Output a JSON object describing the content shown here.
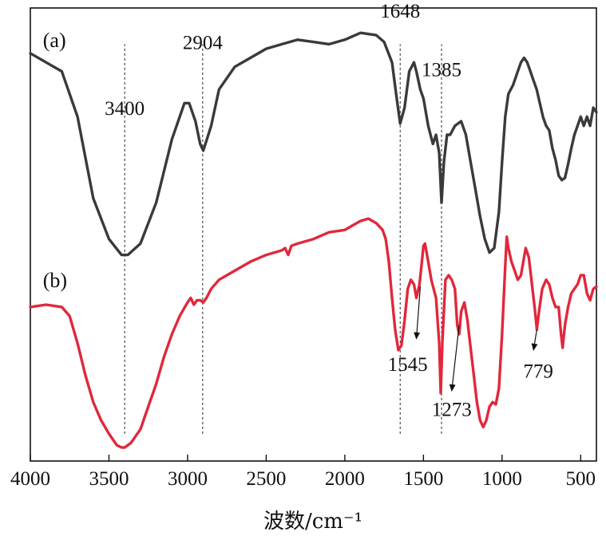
{
  "chart_data": {
    "type": "line",
    "title": "",
    "xlabel": "波数/cm⁻¹",
    "ylabel": "",
    "xlim": [
      4000,
      400
    ],
    "ylim": [
      0,
      1
    ],
    "x_reversed": true,
    "grid": false,
    "legend": "none",
    "x_ticks": [
      {
        "value": 4000,
        "label": "4000"
      },
      {
        "value": 3500,
        "label": "3500"
      },
      {
        "value": 3000,
        "label": "3000"
      },
      {
        "value": 2500,
        "label": "2500"
      },
      {
        "value": 2000,
        "label": "2000"
      },
      {
        "value": 1500,
        "label": "1500"
      },
      {
        "value": 1000,
        "label": "1000"
      },
      {
        "value": 500,
        "label": "500"
      }
    ],
    "series": [
      {
        "name": "(a)",
        "color": "#3a3a3a",
        "points": [
          [
            4000,
            0.9
          ],
          [
            3900,
            0.88
          ],
          [
            3800,
            0.86
          ],
          [
            3700,
            0.76
          ],
          [
            3600,
            0.58
          ],
          [
            3500,
            0.49
          ],
          [
            3420,
            0.455
          ],
          [
            3380,
            0.455
          ],
          [
            3300,
            0.48
          ],
          [
            3200,
            0.57
          ],
          [
            3100,
            0.71
          ],
          [
            3020,
            0.79
          ],
          [
            2990,
            0.79
          ],
          [
            2950,
            0.75
          ],
          [
            2920,
            0.7
          ],
          [
            2900,
            0.685
          ],
          [
            2850,
            0.74
          ],
          [
            2800,
            0.82
          ],
          [
            2700,
            0.87
          ],
          [
            2600,
            0.89
          ],
          [
            2500,
            0.91
          ],
          [
            2400,
            0.92
          ],
          [
            2300,
            0.93
          ],
          [
            2200,
            0.925
          ],
          [
            2100,
            0.92
          ],
          [
            2000,
            0.93
          ],
          [
            1900,
            0.945
          ],
          [
            1800,
            0.94
          ],
          [
            1750,
            0.925
          ],
          [
            1700,
            0.88
          ],
          [
            1670,
            0.8
          ],
          [
            1648,
            0.745
          ],
          [
            1620,
            0.78
          ],
          [
            1590,
            0.86
          ],
          [
            1560,
            0.88
          ],
          [
            1545,
            0.86
          ],
          [
            1520,
            0.82
          ],
          [
            1500,
            0.8
          ],
          [
            1470,
            0.74
          ],
          [
            1440,
            0.7
          ],
          [
            1420,
            0.72
          ],
          [
            1400,
            0.68
          ],
          [
            1385,
            0.57
          ],
          [
            1370,
            0.66
          ],
          [
            1350,
            0.72
          ],
          [
            1330,
            0.72
          ],
          [
            1300,
            0.74
          ],
          [
            1260,
            0.75
          ],
          [
            1230,
            0.72
          ],
          [
            1200,
            0.66
          ],
          [
            1170,
            0.6
          ],
          [
            1140,
            0.54
          ],
          [
            1110,
            0.49
          ],
          [
            1080,
            0.46
          ],
          [
            1050,
            0.47
          ],
          [
            1020,
            0.55
          ],
          [
            1000,
            0.66
          ],
          [
            980,
            0.76
          ],
          [
            960,
            0.81
          ],
          [
            930,
            0.83
          ],
          [
            900,
            0.86
          ],
          [
            880,
            0.88
          ],
          [
            860,
            0.89
          ],
          [
            840,
            0.88
          ],
          [
            820,
            0.86
          ],
          [
            800,
            0.84
          ],
          [
            780,
            0.82
          ],
          [
            760,
            0.79
          ],
          [
            740,
            0.76
          ],
          [
            720,
            0.74
          ],
          [
            700,
            0.73
          ],
          [
            680,
            0.69
          ],
          [
            660,
            0.665
          ],
          [
            640,
            0.63
          ],
          [
            620,
            0.62
          ],
          [
            600,
            0.625
          ],
          [
            580,
            0.655
          ],
          [
            560,
            0.69
          ],
          [
            540,
            0.72
          ],
          [
            520,
            0.74
          ],
          [
            500,
            0.76
          ],
          [
            480,
            0.74
          ],
          [
            460,
            0.76
          ],
          [
            440,
            0.74
          ],
          [
            420,
            0.78
          ],
          [
            400,
            0.77
          ]
        ]
      },
      {
        "name": "(b)",
        "color": "#e0283c",
        "points": [
          [
            4000,
            0.34
          ],
          [
            3900,
            0.345
          ],
          [
            3800,
            0.34
          ],
          [
            3750,
            0.32
          ],
          [
            3700,
            0.26
          ],
          [
            3650,
            0.19
          ],
          [
            3600,
            0.13
          ],
          [
            3550,
            0.09
          ],
          [
            3500,
            0.06
          ],
          [
            3450,
            0.035
          ],
          [
            3420,
            0.03
          ],
          [
            3400,
            0.03
          ],
          [
            3360,
            0.04
          ],
          [
            3300,
            0.07
          ],
          [
            3250,
            0.12
          ],
          [
            3200,
            0.17
          ],
          [
            3150,
            0.23
          ],
          [
            3100,
            0.28
          ],
          [
            3050,
            0.32
          ],
          [
            3000,
            0.35
          ],
          [
            2980,
            0.36
          ],
          [
            2960,
            0.345
          ],
          [
            2940,
            0.355
          ],
          [
            2920,
            0.355
          ],
          [
            2900,
            0.35
          ],
          [
            2880,
            0.36
          ],
          [
            2850,
            0.38
          ],
          [
            2800,
            0.4
          ],
          [
            2700,
            0.42
          ],
          [
            2600,
            0.44
          ],
          [
            2500,
            0.455
          ],
          [
            2400,
            0.465
          ],
          [
            2380,
            0.47
          ],
          [
            2360,
            0.455
          ],
          [
            2340,
            0.475
          ],
          [
            2300,
            0.48
          ],
          [
            2200,
            0.49
          ],
          [
            2100,
            0.505
          ],
          [
            2000,
            0.51
          ],
          [
            1950,
            0.52
          ],
          [
            1900,
            0.53
          ],
          [
            1850,
            0.535
          ],
          [
            1800,
            0.525
          ],
          [
            1760,
            0.51
          ],
          [
            1740,
            0.49
          ],
          [
            1720,
            0.44
          ],
          [
            1700,
            0.36
          ],
          [
            1680,
            0.29
          ],
          [
            1660,
            0.245
          ],
          [
            1640,
            0.255
          ],
          [
            1620,
            0.31
          ],
          [
            1600,
            0.38
          ],
          [
            1580,
            0.4
          ],
          [
            1560,
            0.39
          ],
          [
            1545,
            0.36
          ],
          [
            1525,
            0.39
          ],
          [
            1510,
            0.44
          ],
          [
            1500,
            0.475
          ],
          [
            1490,
            0.48
          ],
          [
            1470,
            0.44
          ],
          [
            1450,
            0.4
          ],
          [
            1420,
            0.36
          ],
          [
            1400,
            0.26
          ],
          [
            1390,
            0.15
          ],
          [
            1380,
            0.26
          ],
          [
            1360,
            0.4
          ],
          [
            1340,
            0.41
          ],
          [
            1320,
            0.4
          ],
          [
            1300,
            0.38
          ],
          [
            1285,
            0.3
          ],
          [
            1273,
            0.28
          ],
          [
            1260,
            0.33
          ],
          [
            1240,
            0.35
          ],
          [
            1220,
            0.31
          ],
          [
            1200,
            0.25
          ],
          [
            1180,
            0.19
          ],
          [
            1160,
            0.13
          ],
          [
            1140,
            0.09
          ],
          [
            1120,
            0.075
          ],
          [
            1100,
            0.09
          ],
          [
            1080,
            0.12
          ],
          [
            1060,
            0.13
          ],
          [
            1040,
            0.125
          ],
          [
            1020,
            0.16
          ],
          [
            1000,
            0.28
          ],
          [
            980,
            0.43
          ],
          [
            970,
            0.495
          ],
          [
            960,
            0.47
          ],
          [
            940,
            0.44
          ],
          [
            920,
            0.42
          ],
          [
            900,
            0.4
          ],
          [
            880,
            0.41
          ],
          [
            860,
            0.45
          ],
          [
            850,
            0.47
          ],
          [
            830,
            0.45
          ],
          [
            810,
            0.39
          ],
          [
            790,
            0.33
          ],
          [
            779,
            0.29
          ],
          [
            765,
            0.33
          ],
          [
            745,
            0.38
          ],
          [
            720,
            0.4
          ],
          [
            700,
            0.39
          ],
          [
            680,
            0.36
          ],
          [
            660,
            0.34
          ],
          [
            640,
            0.34
          ],
          [
            625,
            0.28
          ],
          [
            615,
            0.25
          ],
          [
            600,
            0.3
          ],
          [
            580,
            0.34
          ],
          [
            560,
            0.37
          ],
          [
            540,
            0.38
          ],
          [
            520,
            0.39
          ],
          [
            500,
            0.41
          ],
          [
            480,
            0.41
          ],
          [
            460,
            0.37
          ],
          [
            440,
            0.355
          ],
          [
            420,
            0.38
          ],
          [
            400,
            0.385
          ]
        ]
      }
    ],
    "series_tags": [
      {
        "text": "(a)",
        "x": 3920,
        "y": 0.93
      },
      {
        "text": "(b)",
        "x": 3920,
        "y": 0.4
      }
    ],
    "reference_lines": [
      3400,
      2904,
      1648,
      1385
    ],
    "annotations": [
      {
        "text": "3400",
        "x": 3400,
        "y": 0.78
      },
      {
        "text": "2904",
        "x": 2904,
        "y": 0.925
      },
      {
        "text": "1648",
        "x": 1648,
        "y": 0.995
      },
      {
        "text": "1385",
        "x": 1385,
        "y": 0.865
      },
      {
        "text": "1545",
        "x": 1600,
        "y": 0.215,
        "arrow_from": [
          1520,
          0.385
        ],
        "arrow_to": [
          1545,
          0.27
        ]
      },
      {
        "text": "1273",
        "x": 1320,
        "y": 0.115,
        "arrow_from": [
          1273,
          0.3
        ],
        "arrow_to": [
          1320,
          0.155
        ]
      },
      {
        "text": "779",
        "x": 770,
        "y": 0.2,
        "arrow_from": [
          779,
          0.29
        ],
        "arrow_to": [
          800,
          0.245
        ]
      }
    ]
  }
}
